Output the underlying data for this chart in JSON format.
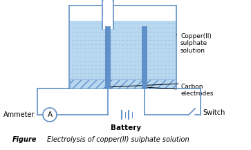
{
  "caption_bold": "Figure",
  "caption_italic": "Electrolysis of copper(II) sulphate solution",
  "label_copper": "Copper(II)\nsulphate\nsolution",
  "label_carbon": "Carbon\nelectrodes",
  "label_ammeter": "Ammeter",
  "label_switch": "Switch",
  "label_battery": "Battery",
  "blue_light": "#b8d8f0",
  "blue_mid": "#90bce0",
  "blue_dark": "#6090c8",
  "bg_color": "#ffffff",
  "line_color": "#6090c8",
  "text_color": "#000000"
}
